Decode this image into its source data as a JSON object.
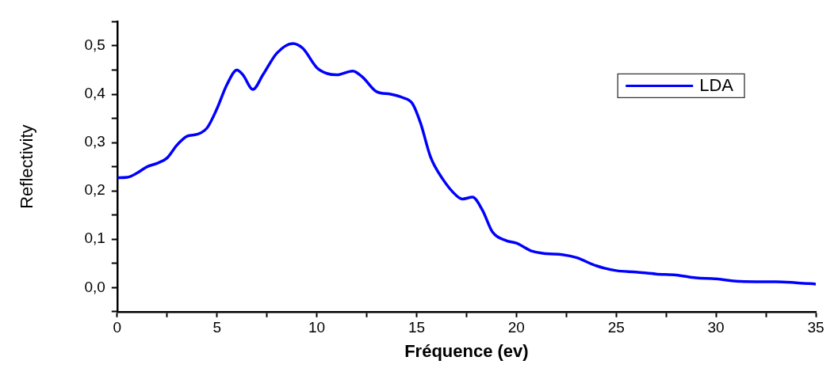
{
  "chart_data": {
    "type": "line",
    "xlabel": "Fréquence (ev)",
    "ylabel": "Reflectivity",
    "x": [
      0,
      0.5,
      1,
      1.5,
      2,
      2.5,
      3,
      3.5,
      4,
      4.5,
      5,
      5.5,
      6,
      6.3,
      6.8,
      7.3,
      8,
      8.8,
      9.3,
      10,
      10.5,
      11,
      11.8,
      12.3,
      13,
      13.7,
      14.3,
      14.8,
      15.2,
      15.7,
      16.3,
      17,
      17.3,
      17.8,
      18.3,
      18.8,
      19.5,
      20,
      20.8,
      21.5,
      22.3,
      23,
      24,
      25,
      26,
      27,
      28,
      29,
      30,
      31,
      32,
      33,
      34,
      35
    ],
    "series": [
      {
        "name": "LDA",
        "color": "#0000ff",
        "values": [
          0.227,
          0.228,
          0.237,
          0.25,
          0.257,
          0.268,
          0.295,
          0.313,
          0.317,
          0.33,
          0.37,
          0.42,
          0.45,
          0.44,
          0.41,
          0.44,
          0.485,
          0.505,
          0.495,
          0.455,
          0.443,
          0.44,
          0.448,
          0.435,
          0.405,
          0.4,
          0.393,
          0.38,
          0.34,
          0.27,
          0.225,
          0.19,
          0.183,
          0.187,
          0.16,
          0.115,
          0.097,
          0.092,
          0.075,
          0.07,
          0.068,
          0.062,
          0.045,
          0.035,
          0.032,
          0.028,
          0.026,
          0.02,
          0.018,
          0.013,
          0.012,
          0.012,
          0.01,
          0.007
        ]
      }
    ],
    "xlim": [
      0,
      35
    ],
    "xticks": [
      0,
      {
        "value": 2.5,
        "label": null
      },
      5,
      {
        "value": 7.5,
        "label": null
      },
      10,
      {
        "value": 12.5,
        "label": null
      },
      15,
      {
        "value": 17.5,
        "label": null
      },
      20,
      {
        "value": 22.5,
        "label": null
      },
      25,
      {
        "value": 27.5,
        "label": null
      },
      30,
      {
        "value": 32.5,
        "label": null
      },
      35
    ],
    "ylim": [
      -0.05,
      0.55
    ],
    "yticks": [
      {
        "value": -0.05,
        "label": null
      },
      {
        "value": 0,
        "label": "0,0"
      },
      {
        "value": 0.05,
        "label": null
      },
      {
        "value": 0.1,
        "label": "0,1"
      },
      {
        "value": 0.15,
        "label": null
      },
      {
        "value": 0.2,
        "label": "0,2"
      },
      {
        "value": 0.25,
        "label": null
      },
      {
        "value": 0.3,
        "label": "0,3"
      },
      {
        "value": 0.35,
        "label": null
      },
      {
        "value": 0.4,
        "label": "0,4"
      },
      {
        "value": 0.45,
        "label": null
      },
      {
        "value": 0.5,
        "label": "0,5"
      },
      {
        "value": 0.55,
        "label": null
      }
    ],
    "grid": false,
    "legend": "top right",
    "marker": "none",
    "line_style": "solid"
  }
}
